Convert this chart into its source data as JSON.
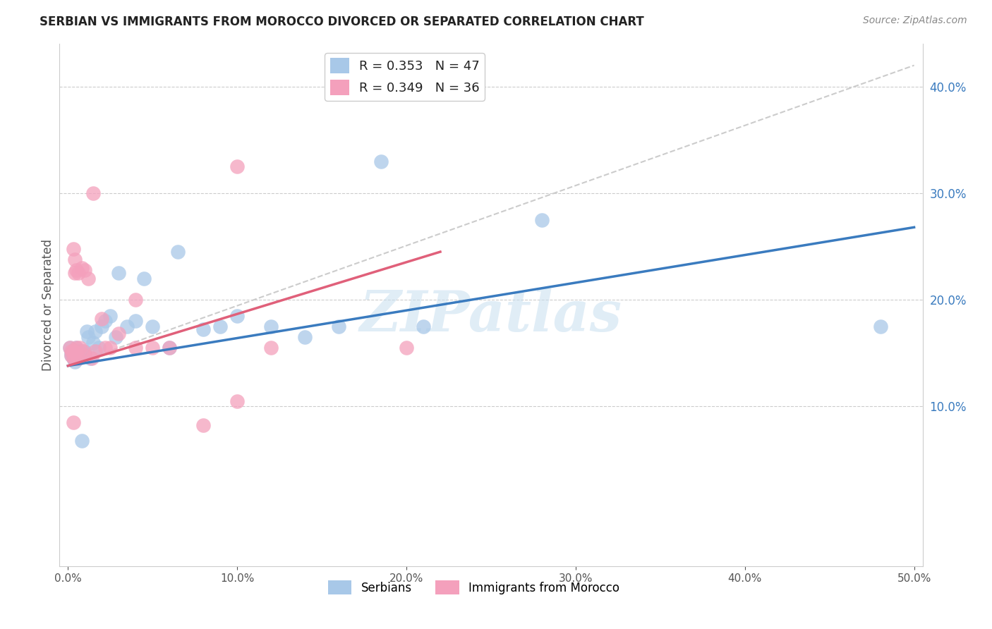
{
  "title": "SERBIAN VS IMMIGRANTS FROM MOROCCO DIVORCED OR SEPARATED CORRELATION CHART",
  "source": "Source: ZipAtlas.com",
  "ylabel": "Divorced or Separated",
  "watermark": "ZIPatlas",
  "xlim": [
    -0.005,
    0.505
  ],
  "ylim": [
    -0.05,
    0.44
  ],
  "xticks": [
    0.0,
    0.1,
    0.2,
    0.3,
    0.4,
    0.5
  ],
  "yticks_left": [],
  "yticks_right": [
    0.1,
    0.2,
    0.3,
    0.4
  ],
  "yticks_grid": [
    0.1,
    0.2,
    0.3,
    0.4
  ],
  "blue_scatter_x": [
    0.001,
    0.002,
    0.002,
    0.003,
    0.003,
    0.004,
    0.004,
    0.005,
    0.005,
    0.006,
    0.006,
    0.006,
    0.007,
    0.007,
    0.008,
    0.008,
    0.009,
    0.01,
    0.01,
    0.011,
    0.012,
    0.013,
    0.015,
    0.016,
    0.018,
    0.02,
    0.022,
    0.025,
    0.028,
    0.03,
    0.035,
    0.04,
    0.045,
    0.05,
    0.06,
    0.065,
    0.08,
    0.09,
    0.1,
    0.12,
    0.14,
    0.16,
    0.185,
    0.21,
    0.28,
    0.48,
    0.008
  ],
  "blue_scatter_y": [
    0.155,
    0.15,
    0.148,
    0.145,
    0.148,
    0.15,
    0.142,
    0.155,
    0.148,
    0.152,
    0.148,
    0.145,
    0.15,
    0.148,
    0.152,
    0.148,
    0.148,
    0.152,
    0.15,
    0.17,
    0.165,
    0.145,
    0.16,
    0.17,
    0.155,
    0.175,
    0.18,
    0.185,
    0.165,
    0.225,
    0.175,
    0.18,
    0.22,
    0.175,
    0.155,
    0.245,
    0.172,
    0.175,
    0.185,
    0.175,
    0.165,
    0.175,
    0.33,
    0.175,
    0.275,
    0.175,
    0.068
  ],
  "pink_scatter_x": [
    0.001,
    0.002,
    0.002,
    0.003,
    0.003,
    0.004,
    0.004,
    0.005,
    0.005,
    0.006,
    0.006,
    0.007,
    0.008,
    0.009,
    0.01,
    0.01,
    0.012,
    0.014,
    0.016,
    0.02,
    0.025,
    0.03,
    0.04,
    0.05,
    0.06,
    0.08,
    0.1,
    0.1,
    0.12,
    0.2,
    0.003,
    0.003,
    0.004,
    0.015,
    0.022,
    0.04
  ],
  "pink_scatter_y": [
    0.155,
    0.152,
    0.148,
    0.248,
    0.145,
    0.238,
    0.225,
    0.155,
    0.228,
    0.225,
    0.145,
    0.155,
    0.23,
    0.152,
    0.148,
    0.228,
    0.22,
    0.145,
    0.152,
    0.182,
    0.155,
    0.168,
    0.2,
    0.155,
    0.155,
    0.082,
    0.105,
    0.325,
    0.155,
    0.155,
    0.085,
    0.152,
    0.145,
    0.3,
    0.155,
    0.155
  ],
  "blue_line_x": [
    0.0,
    0.5
  ],
  "blue_line_y": [
    0.138,
    0.268
  ],
  "pink_line_x": [
    0.0,
    0.22
  ],
  "pink_line_y": [
    0.138,
    0.245
  ],
  "dash_line_x": [
    0.0,
    0.5
  ],
  "dash_line_y": [
    0.138,
    0.42
  ],
  "blue_color": "#a8c8e8",
  "pink_color": "#f4a0bc",
  "blue_line_color": "#3a7bbf",
  "pink_line_color": "#e0607a",
  "dash_color": "#cccccc",
  "background_color": "#ffffff",
  "grid_color": "#cccccc",
  "right_axis_color": "#3a7bbf"
}
